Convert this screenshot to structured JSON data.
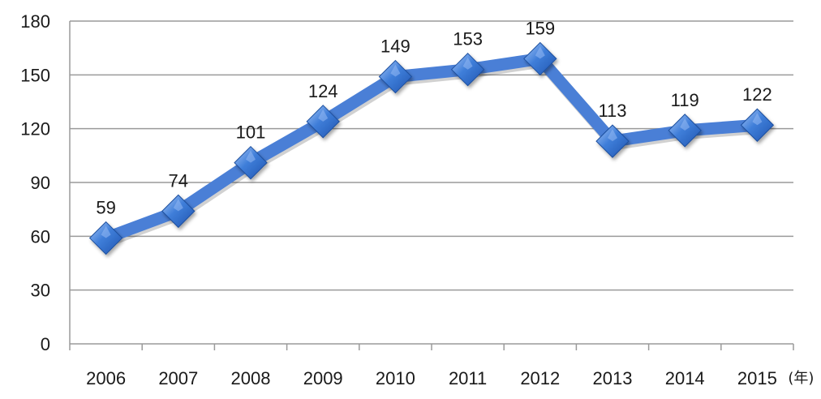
{
  "chart_data": {
    "type": "line",
    "categories": [
      "2006",
      "2007",
      "2008",
      "2009",
      "2010",
      "2011",
      "2012",
      "2013",
      "2014",
      "2015"
    ],
    "series": [
      {
        "values": [
          59,
          74,
          101,
          124,
          149,
          153,
          159,
          113,
          119,
          122
        ]
      }
    ],
    "data_labels": [
      "59",
      "74",
      "101",
      "124",
      "149",
      "153",
      "159",
      "113",
      "119",
      "122"
    ],
    "x_unit": "(年)",
    "ylim": [
      0,
      180
    ],
    "yticks": [
      0,
      30,
      60,
      90,
      120,
      150,
      180
    ],
    "grid": true,
    "legend": false,
    "colors": {
      "line": "#4a7fd6",
      "marker": "#2f6fd3",
      "marker_light": "#8fb6f2",
      "grid": "#9a9a9a",
      "axis": "#9a9a9a"
    }
  }
}
